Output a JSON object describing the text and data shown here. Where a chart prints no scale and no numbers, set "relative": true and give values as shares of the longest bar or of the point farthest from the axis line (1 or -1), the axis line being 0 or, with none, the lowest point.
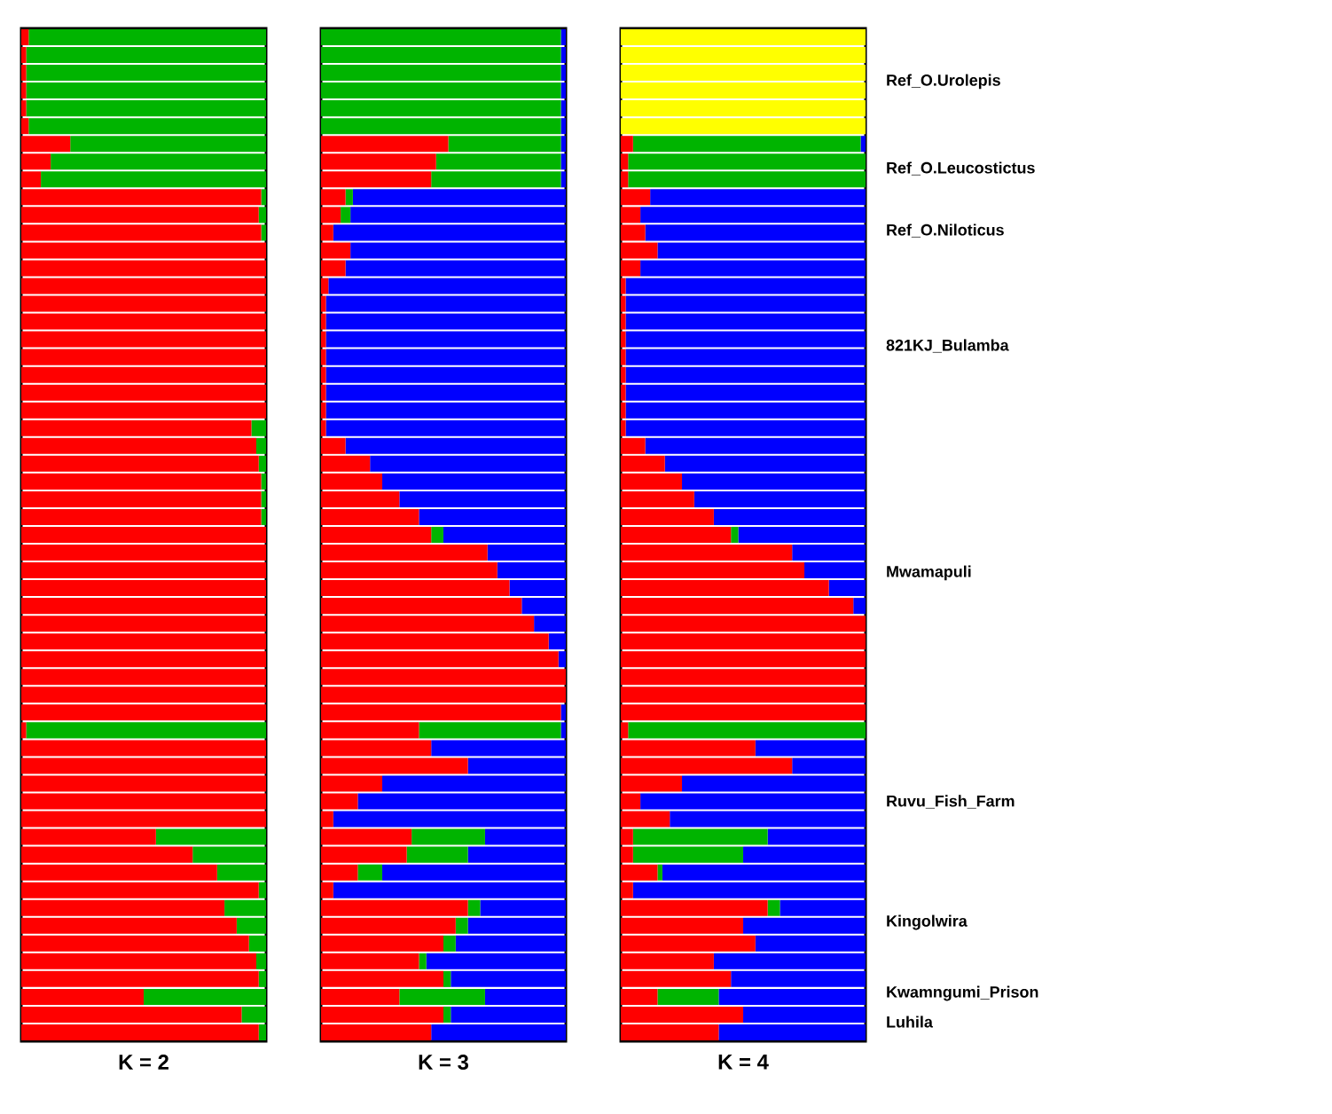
{
  "chart_data": [
    {
      "type": "bar",
      "orientation": "horizontal",
      "stacked": true,
      "relative": true,
      "xlabel": "K = 2",
      "categories": [
        null,
        null,
        null,
        null,
        null,
        null,
        null,
        null,
        null,
        null,
        null,
        null,
        null,
        null,
        null,
        null,
        null,
        null,
        null,
        null,
        null,
        null,
        null,
        null,
        null,
        null,
        null,
        null,
        null,
        null,
        null,
        null,
        null,
        null,
        null,
        null,
        null,
        null,
        null,
        null,
        null,
        null,
        null,
        null,
        null,
        null,
        null,
        null,
        null,
        null,
        null,
        null,
        null,
        null,
        null,
        null,
        null
      ],
      "series": [
        {
          "color": "#ff0000",
          "values": [
            0.03,
            0.02,
            0.02,
            0.02,
            0.02,
            0.03,
            0.2,
            0.12,
            0.08,
            0.98,
            0.97,
            0.98,
            1,
            1,
            1,
            1,
            1,
            1,
            1,
            1,
            1,
            1,
            0.94,
            0.96,
            0.97,
            0.98,
            0.98,
            0.98,
            1,
            1,
            1,
            1,
            1,
            1,
            1,
            1,
            1,
            1,
            1,
            0.02,
            1,
            1,
            1,
            1,
            1,
            0.55,
            0.7,
            0.8,
            0.97,
            0.83,
            0.88,
            0.93,
            0.96,
            0.97,
            0.5,
            0.9,
            0.97
          ]
        },
        {
          "color": "#00b400",
          "values": [
            0.97,
            0.98,
            0.98,
            0.98,
            0.98,
            0.97,
            0.8,
            0.88,
            0.92,
            0.02,
            0.03,
            0.02,
            0,
            0,
            0,
            0,
            0,
            0,
            0,
            0,
            0,
            0,
            0.06,
            0.04,
            0.03,
            0.02,
            0.02,
            0.02,
            0,
            0,
            0,
            0,
            0,
            0,
            0,
            0,
            0,
            0,
            0,
            0.98,
            0,
            0,
            0,
            0,
            0,
            0.45,
            0.3,
            0.2,
            0.03,
            0.17,
            0.12,
            0.07,
            0.04,
            0.03,
            0.5,
            0.1,
            0.03
          ]
        }
      ]
    },
    {
      "type": "bar",
      "orientation": "horizontal",
      "stacked": true,
      "relative": true,
      "xlabel": "K = 3",
      "categories": [
        null,
        null,
        null,
        null,
        null,
        null,
        null,
        null,
        null,
        null,
        null,
        null,
        null,
        null,
        null,
        null,
        null,
        null,
        null,
        null,
        null,
        null,
        null,
        null,
        null,
        null,
        null,
        null,
        null,
        null,
        null,
        null,
        null,
        null,
        null,
        null,
        null,
        null,
        null,
        null,
        null,
        null,
        null,
        null,
        null,
        null,
        null,
        null,
        null,
        null,
        null,
        null,
        null,
        null,
        null,
        null,
        null
      ],
      "series": [
        {
          "color": "#ff0000",
          "values": [
            0,
            0,
            0,
            0,
            0,
            0,
            0.52,
            0.47,
            0.45,
            0.1,
            0.08,
            0.05,
            0.12,
            0.1,
            0.03,
            0.02,
            0.02,
            0.02,
            0.02,
            0.02,
            0.02,
            0.02,
            0.02,
            0.1,
            0.2,
            0.25,
            0.32,
            0.4,
            0.45,
            0.68,
            0.72,
            0.77,
            0.82,
            0.87,
            0.93,
            0.97,
            1,
            1,
            0.98,
            0.4,
            0.45,
            0.6,
            0.25,
            0.15,
            0.05,
            0.37,
            0.35,
            0.15,
            0.05,
            0.6,
            0.55,
            0.5,
            0.4,
            0.5,
            0.32,
            0.5,
            0.45
          ]
        },
        {
          "color": "#00b400",
          "values": [
            0.98,
            0.98,
            0.98,
            0.98,
            0.98,
            0.98,
            0.46,
            0.51,
            0.53,
            0.03,
            0.04,
            0,
            0,
            0,
            0,
            0,
            0,
            0,
            0,
            0,
            0,
            0,
            0,
            0,
            0,
            0,
            0,
            0,
            0.05,
            0,
            0,
            0,
            0,
            0,
            0,
            0,
            0,
            0,
            0,
            0.58,
            0,
            0,
            0,
            0,
            0,
            0.3,
            0.25,
            0.1,
            0,
            0.05,
            0.05,
            0.05,
            0.03,
            0.03,
            0.35,
            0.03,
            0
          ]
        },
        {
          "color": "#0000ff",
          "values": [
            0.02,
            0.02,
            0.02,
            0.02,
            0.02,
            0.02,
            0.02,
            0.02,
            0.02,
            0.87,
            0.88,
            0.95,
            0.88,
            0.9,
            0.97,
            0.98,
            0.98,
            0.98,
            0.98,
            0.98,
            0.98,
            0.98,
            0.98,
            0.9,
            0.8,
            0.75,
            0.68,
            0.6,
            0.5,
            0.32,
            0.28,
            0.23,
            0.18,
            0.13,
            0.07,
            0.03,
            0,
            0,
            0.02,
            0.02,
            0.55,
            0.4,
            0.75,
            0.85,
            0.95,
            0.33,
            0.4,
            0.75,
            0.95,
            0.35,
            0.4,
            0.45,
            0.57,
            0.47,
            0.33,
            0.47,
            0.55
          ]
        }
      ]
    },
    {
      "type": "bar",
      "orientation": "horizontal",
      "stacked": true,
      "relative": true,
      "xlabel": "K = 4",
      "categories": [
        null,
        null,
        null,
        null,
        null,
        null,
        null,
        null,
        null,
        null,
        null,
        null,
        null,
        null,
        null,
        null,
        null,
        null,
        null,
        null,
        null,
        null,
        null,
        null,
        null,
        null,
        null,
        null,
        null,
        null,
        null,
        null,
        null,
        null,
        null,
        null,
        null,
        null,
        null,
        null,
        null,
        null,
        null,
        null,
        null,
        null,
        null,
        null,
        null,
        null,
        null,
        null,
        null,
        null,
        null,
        null,
        null
      ],
      "series": [
        {
          "color": "#ff0000",
          "values": [
            0,
            0,
            0,
            0,
            0,
            0,
            0.05,
            0.03,
            0.03,
            0.12,
            0.08,
            0.1,
            0.15,
            0.08,
            0.02,
            0.02,
            0.02,
            0.02,
            0.02,
            0.02,
            0.02,
            0.02,
            0.02,
            0.1,
            0.18,
            0.25,
            0.3,
            0.38,
            0.45,
            0.7,
            0.75,
            0.85,
            0.95,
            1,
            1,
            1,
            1,
            1,
            1,
            0.03,
            0.55,
            0.7,
            0.25,
            0.08,
            0.2,
            0.05,
            0.05,
            0.15,
            0.05,
            0.6,
            0.5,
            0.55,
            0.38,
            0.45,
            0.15,
            0.5,
            0.4
          ]
        },
        {
          "color": "#00b400",
          "values": [
            0,
            0,
            0,
            0,
            0,
            0,
            0.93,
            0.97,
            0.97,
            0,
            0,
            0,
            0,
            0,
            0,
            0,
            0,
            0,
            0,
            0,
            0,
            0,
            0,
            0,
            0,
            0,
            0,
            0,
            0.03,
            0,
            0,
            0,
            0,
            0,
            0,
            0,
            0,
            0,
            0,
            0.97,
            0,
            0,
            0,
            0,
            0,
            0.55,
            0.45,
            0.02,
            0,
            0.05,
            0,
            0,
            0,
            0,
            0.25,
            0,
            0
          ]
        },
        {
          "color": "#0000ff",
          "values": [
            0,
            0,
            0,
            0,
            0,
            0,
            0.02,
            0,
            0,
            0.88,
            0.92,
            0.9,
            0.85,
            0.92,
            0.98,
            0.98,
            0.98,
            0.98,
            0.98,
            0.98,
            0.98,
            0.98,
            0.98,
            0.9,
            0.82,
            0.75,
            0.7,
            0.62,
            0.52,
            0.3,
            0.25,
            0.15,
            0.05,
            0,
            0,
            0,
            0,
            0,
            0,
            0,
            0.45,
            0.3,
            0.75,
            0.92,
            0.8,
            0.4,
            0.5,
            0.83,
            0.95,
            0.35,
            0.5,
            0.45,
            0.62,
            0.55,
            0.6,
            0.5,
            0.6
          ]
        },
        {
          "color": "#ffff00",
          "values": [
            1,
            1,
            1,
            1,
            1,
            1,
            0,
            0,
            0,
            0,
            0,
            0,
            0,
            0,
            0,
            0,
            0,
            0,
            0,
            0,
            0,
            0,
            0,
            0,
            0,
            0,
            0,
            0,
            0,
            0,
            0,
            0,
            0,
            0,
            0,
            0,
            0,
            0,
            0,
            0,
            0,
            0,
            0,
            0,
            0,
            0,
            0,
            0,
            0,
            0,
            0,
            0,
            0,
            0,
            0,
            0,
            0
          ]
        }
      ],
      "annotations": [
        "Ref_O.Urolepis",
        "Ref_O.Leucostictus",
        "Ref_O.Niloticus",
        "821KJ_Bulamba",
        "Mwamapuli",
        "Ruvu_Fish_Farm",
        "Kingolwira",
        "Kwamngumi_Prison",
        "Luhila"
      ]
    }
  ]
}
